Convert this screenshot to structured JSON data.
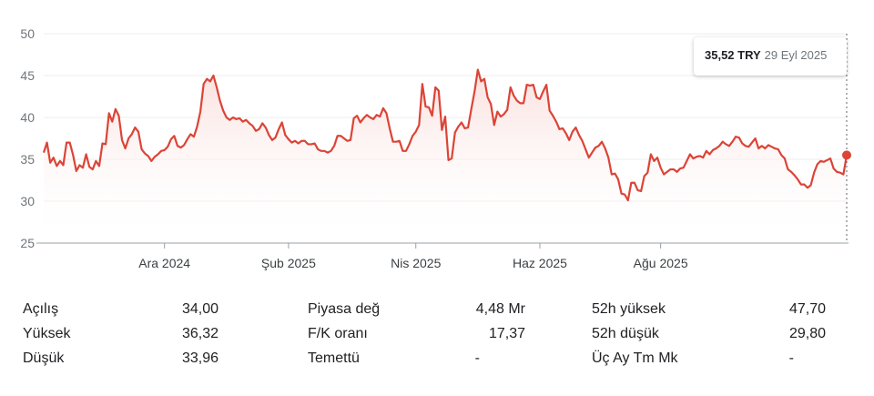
{
  "chart_data": {
    "type": "area",
    "y_ticks": [
      "50",
      "45",
      "40",
      "35",
      "30",
      "25"
    ],
    "ylim": [
      25,
      50
    ],
    "x_ticks": [
      {
        "label": "Ara 2024",
        "index": 37
      },
      {
        "label": "Şub 2025",
        "index": 75
      },
      {
        "label": "Nis 2025",
        "index": 114
      },
      {
        "label": "Haz 2025",
        "index": 152
      },
      {
        "label": "Ağu 2025",
        "index": 189
      }
    ],
    "values": [
      35.8,
      37.0,
      34.6,
      35.2,
      34.2,
      34.8,
      34.3,
      37.0,
      37.0,
      35.5,
      33.6,
      34.3,
      34.0,
      35.6,
      34.1,
      33.8,
      34.8,
      34.2,
      36.9,
      36.8,
      40.5,
      39.5,
      41.0,
      40.2,
      37.3,
      36.3,
      37.5,
      38.0,
      38.8,
      38.3,
      36.2,
      35.7,
      35.4,
      34.8,
      35.3,
      35.6,
      36.0,
      36.1,
      36.5,
      37.4,
      37.8,
      36.6,
      36.4,
      36.7,
      37.4,
      38.0,
      37.7,
      38.9,
      40.7,
      44.0,
      44.6,
      44.3,
      45.0,
      43.6,
      42.0,
      40.8,
      40.0,
      39.7,
      40.0,
      39.8,
      39.9,
      39.5,
      39.7,
      39.3,
      39.0,
      38.4,
      38.6,
      39.3,
      38.8,
      37.9,
      37.3,
      37.6,
      38.6,
      39.4,
      37.9,
      37.4,
      37.0,
      37.2,
      36.9,
      37.2,
      37.2,
      36.8,
      36.8,
      36.9,
      36.2,
      36.0,
      36.0,
      35.8,
      36.0,
      36.6,
      37.8,
      37.8,
      37.5,
      37.2,
      37.3,
      39.9,
      40.2,
      39.4,
      39.9,
      40.3,
      40.0,
      39.8,
      40.3,
      40.1,
      41.1,
      40.5,
      38.7,
      37.1,
      37.1,
      37.2,
      36.0,
      36.0,
      36.8,
      37.8,
      38.3,
      39.1,
      44.0,
      41.3,
      41.2,
      40.2,
      43.6,
      43.2,
      38.5,
      40.1,
      34.9,
      35.1,
      38.2,
      38.9,
      39.4,
      38.7,
      38.8,
      41.0,
      43.1,
      45.7,
      44.3,
      44.6,
      42.4,
      41.6,
      39.1,
      40.7,
      40.1,
      40.4,
      40.9,
      43.6,
      42.6,
      42.0,
      41.7,
      41.7,
      43.9,
      43.8,
      43.9,
      42.4,
      42.2,
      43.1,
      43.9,
      40.8,
      40.2,
      39.5,
      38.6,
      38.7,
      38.1,
      37.3,
      38.3,
      38.8,
      37.9,
      37.2,
      36.2,
      35.2,
      35.8,
      36.4,
      36.6,
      37.1,
      36.3,
      35.2,
      33.2,
      33.3,
      32.6,
      30.9,
      30.8,
      30.1,
      32.2,
      32.2,
      31.3,
      31.2,
      33.0,
      33.4,
      35.6,
      34.8,
      35.2,
      34.0,
      33.2,
      33.5,
      33.8,
      33.8,
      33.5,
      33.9,
      34.0,
      34.8,
      35.6,
      35.1,
      35.3,
      35.4,
      35.2,
      36.0,
      35.6,
      36.1,
      36.3,
      36.6,
      37.1,
      36.8,
      36.6,
      37.1,
      37.7,
      37.6,
      36.9,
      36.6,
      36.5,
      37.0,
      37.5,
      36.3,
      36.6,
      36.3,
      36.7,
      36.5,
      36.3,
      36.2,
      35.5,
      35.1,
      33.8,
      33.5,
      33.1,
      32.6,
      32.0,
      32.0,
      31.6,
      31.9,
      33.4,
      34.4,
      34.8,
      34.7,
      34.9,
      35.1,
      33.9,
      33.5,
      33.4,
      33.2,
      35.5
    ],
    "line_color": "#db4437",
    "fill_color_top": "#f9dcd9",
    "grid": true,
    "marker": {
      "price": "35,52 TRY",
      "date": "29 Eyl 2025"
    }
  },
  "stats": [
    {
      "id": "acilis",
      "label": "Açılış",
      "value": "34,00"
    },
    {
      "id": "yuksek",
      "label": "Yüksek",
      "value": "36,32"
    },
    {
      "id": "dusuk",
      "label": "Düşük",
      "value": "33,96"
    },
    {
      "id": "piyasa-deg",
      "label": "Piyasa değ",
      "value": "4,48 Mr"
    },
    {
      "id": "fk-orani",
      "label": "F/K oranı",
      "value": "17,37"
    },
    {
      "id": "temettu",
      "label": "Temettü",
      "value": "-"
    },
    {
      "id": "52h-yuksek",
      "label": "52h yüksek",
      "value": "47,70"
    },
    {
      "id": "52h-dusuk",
      "label": "52h düşük",
      "value": "29,80"
    },
    {
      "id": "uc-ay-tm-mk",
      "label": "Üç Ay Tm Mk",
      "value": "-"
    }
  ]
}
